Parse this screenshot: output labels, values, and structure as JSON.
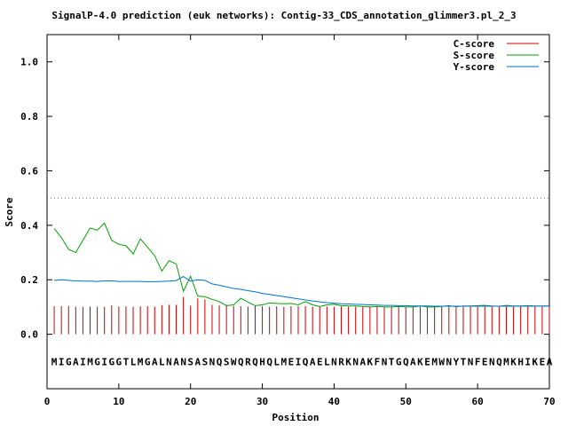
{
  "chart_data": {
    "type": "line",
    "title": "SignalP-4.0 prediction (euk networks): Contig-33_CDS_annotation_glimmer3.pl_2_3",
    "xlabel": "Position",
    "ylabel": "Score",
    "xlim": [
      0,
      70
    ],
    "ylim": [
      -0.2,
      1.1
    ],
    "xticks": [
      0,
      10,
      20,
      30,
      40,
      50,
      60,
      70
    ],
    "yticks": [
      0.0,
      0.2,
      0.4,
      0.6,
      0.8,
      1.0
    ],
    "xtick_labels": [
      "0",
      "10",
      "20",
      "30",
      "40",
      "50",
      "60",
      "70"
    ],
    "ytick_labels": [
      "0.0",
      "0.2",
      "0.4",
      "0.6",
      "0.8",
      "1.0"
    ],
    "threshold": 0.5,
    "legend_position": "top-right",
    "grid": false,
    "sequence": "MIGAIMGIGGTLMGALNANSASNQSWQRQHQLMEIQAELNRKNAKFNTGQAKEMWNYTNFENQMKHIKEA",
    "series": [
      {
        "name": "C-score",
        "color": "#cc0000",
        "style": "impulse",
        "x": [
          1,
          2,
          3,
          4,
          5,
          6,
          7,
          8,
          9,
          10,
          11,
          12,
          13,
          14,
          15,
          16,
          17,
          18,
          19,
          20,
          21,
          22,
          23,
          24,
          25,
          26,
          27,
          28,
          29,
          30,
          31,
          32,
          33,
          34,
          35,
          36,
          37,
          38,
          39,
          40,
          41,
          42,
          43,
          44,
          45,
          46,
          47,
          48,
          49,
          50,
          51,
          52,
          53,
          54,
          55,
          56,
          57,
          58,
          59,
          60,
          61,
          62,
          63,
          64,
          65,
          66,
          67,
          68,
          69,
          70
        ],
        "values": [
          0.103,
          0.103,
          0.104,
          0.101,
          0.101,
          0.102,
          0.101,
          0.101,
          0.106,
          0.102,
          0.102,
          0.101,
          0.102,
          0.103,
          0.101,
          0.107,
          0.108,
          0.108,
          0.137,
          0.105,
          0.132,
          0.128,
          0.108,
          0.106,
          0.108,
          0.104,
          0.103,
          0.102,
          0.104,
          0.103,
          0.101,
          0.102,
          0.101,
          0.103,
          0.104,
          0.103,
          0.101,
          0.101,
          0.102,
          0.101,
          0.102,
          0.101,
          0.101,
          0.102,
          0.101,
          0.101,
          0.101,
          0.101,
          0.101,
          0.101,
          0.101,
          0.101,
          0.101,
          0.101,
          0.101,
          0.101,
          0.101,
          0.101,
          0.101,
          0.101,
          0.101,
          0.101,
          0.101,
          0.101,
          0.101,
          0.101,
          0.101,
          0.101,
          0.101,
          0.101
        ]
      },
      {
        "name": "S-score",
        "color": "#00a000",
        "style": "line",
        "x": [
          1,
          2,
          3,
          4,
          5,
          6,
          7,
          8,
          9,
          10,
          11,
          12,
          13,
          14,
          15,
          16,
          17,
          18,
          19,
          20,
          21,
          22,
          23,
          24,
          25,
          26,
          27,
          28,
          29,
          30,
          31,
          32,
          33,
          34,
          35,
          36,
          37,
          38,
          39,
          40,
          41,
          42,
          43,
          44,
          45,
          46,
          47,
          48,
          49,
          50,
          51,
          52,
          53,
          54,
          55,
          56,
          57,
          58,
          59,
          60,
          61,
          62,
          63,
          64,
          65,
          66,
          67,
          68,
          69,
          70
        ],
        "values": [
          0.388,
          0.355,
          0.312,
          0.3,
          0.345,
          0.39,
          0.382,
          0.408,
          0.345,
          0.33,
          0.325,
          0.295,
          0.35,
          0.32,
          0.288,
          0.232,
          0.27,
          0.258,
          0.158,
          0.213,
          0.14,
          0.138,
          0.128,
          0.12,
          0.105,
          0.108,
          0.132,
          0.118,
          0.105,
          0.108,
          0.115,
          0.113,
          0.112,
          0.113,
          0.108,
          0.12,
          0.108,
          0.102,
          0.108,
          0.11,
          0.105,
          0.104,
          0.104,
          0.102,
          0.1,
          0.102,
          0.1,
          0.1,
          0.102,
          0.1,
          0.1,
          0.104,
          0.1,
          0.1,
          0.102,
          0.105,
          0.101,
          0.104,
          0.104,
          0.105,
          0.106,
          0.104,
          0.103,
          0.106,
          0.104,
          0.104,
          0.105,
          0.104,
          0.103,
          0.103
        ]
      },
      {
        "name": "Y-score",
        "color": "#0070d0",
        "style": "line",
        "x": [
          1,
          2,
          3,
          4,
          5,
          6,
          7,
          8,
          9,
          10,
          11,
          12,
          13,
          14,
          15,
          16,
          17,
          18,
          19,
          20,
          21,
          22,
          23,
          24,
          25,
          26,
          27,
          28,
          29,
          30,
          31,
          32,
          33,
          34,
          35,
          36,
          37,
          38,
          39,
          40,
          41,
          42,
          43,
          44,
          45,
          46,
          47,
          48,
          49,
          50,
          51,
          52,
          53,
          54,
          55,
          56,
          57,
          58,
          59,
          60,
          61,
          62,
          63,
          64,
          65,
          66,
          67,
          68,
          69,
          70
        ],
        "values": [
          0.198,
          0.2,
          0.198,
          0.196,
          0.195,
          0.195,
          0.194,
          0.196,
          0.196,
          0.194,
          0.194,
          0.194,
          0.194,
          0.193,
          0.193,
          0.194,
          0.195,
          0.197,
          0.212,
          0.195,
          0.2,
          0.198,
          0.185,
          0.18,
          0.174,
          0.168,
          0.165,
          0.16,
          0.156,
          0.15,
          0.146,
          0.142,
          0.138,
          0.134,
          0.13,
          0.126,
          0.122,
          0.119,
          0.116,
          0.114,
          0.112,
          0.111,
          0.11,
          0.109,
          0.108,
          0.107,
          0.106,
          0.106,
          0.105,
          0.105,
          0.104,
          0.104,
          0.104,
          0.103,
          0.103,
          0.103,
          0.103,
          0.103,
          0.103,
          0.103,
          0.103,
          0.103,
          0.103,
          0.103,
          0.103,
          0.103,
          0.103,
          0.103,
          0.104,
          0.104
        ]
      }
    ]
  }
}
